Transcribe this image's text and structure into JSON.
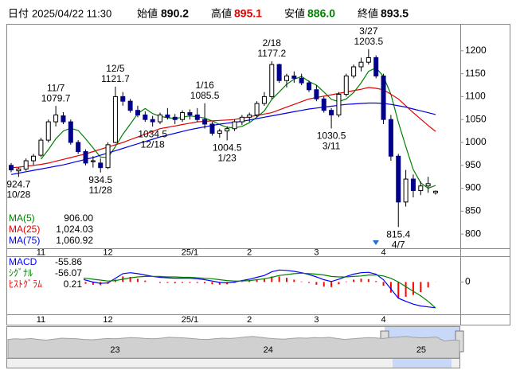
{
  "header": {
    "date_label": "日付",
    "datetime": "2025/04/22 11:30",
    "open_label": "始値",
    "open": 890.2,
    "high_label": "高値",
    "high": 895.1,
    "low_label": "安値",
    "low": {
      "value": 886.0,
      "label": "886.0"
    },
    "close_label": "終値",
    "close": 893.5
  },
  "chart_data": [
    {
      "type": "candlestick",
      "categories": [
        null,
        null,
        null,
        null,
        "11",
        null,
        null,
        null,
        null,
        null,
        null,
        null,
        null,
        "12",
        null,
        null,
        null,
        null,
        null,
        null,
        null,
        null,
        null,
        null,
        "25/1",
        null,
        null,
        null,
        null,
        null,
        null,
        null,
        "2",
        null,
        null,
        null,
        null,
        null,
        null,
        null,
        null,
        "3",
        null,
        null,
        null,
        null,
        null,
        null,
        null,
        null,
        "4",
        null,
        null,
        null,
        null,
        null,
        null,
        null
      ],
      "open": [
        950,
        938,
        942,
        960,
        972,
        1005,
        1045,
        1058,
        1045,
        1000,
        980,
        958,
        955,
        945,
        1000,
        1100,
        1090,
        1070,
        1060,
        1050,
        1045,
        1060,
        1055,
        1050,
        1065,
        1060,
        1050,
        1040,
        1020,
        1025,
        1030,
        1045,
        1055,
        1060,
        1085,
        1100,
        1170,
        1135,
        1145,
        1140,
        1130,
        1115,
        1095,
        1070,
        1060,
        1105,
        1145,
        1165,
        1175,
        1185,
        1145,
        1050,
        970,
        870,
        920,
        895,
        905,
        890.2
      ],
      "high": [
        955,
        945,
        965,
        975,
        1010,
        1050,
        1079.7,
        1066,
        1050,
        1005,
        985,
        970,
        965,
        1000,
        1121.7,
        1110,
        1095,
        1080,
        1068,
        1058,
        1065,
        1075,
        1062,
        1070,
        1072,
        1075,
        1085.5,
        1045,
        1030,
        1035,
        1050,
        1060,
        1065,
        1090,
        1110,
        1177.2,
        1172,
        1150,
        1155,
        1150,
        1135,
        1125,
        1100,
        1075,
        1110,
        1150,
        1170,
        1185,
        1203.5,
        1190,
        1150,
        1060,
        975,
        940,
        930,
        915,
        925,
        895.1
      ],
      "low": [
        935,
        924.7,
        938,
        950,
        968,
        1000,
        1035,
        1040,
        995,
        975,
        950,
        945,
        934.5,
        942,
        998,
        1080,
        1065,
        1055,
        1045,
        1034.5,
        1040,
        1050,
        1040,
        1045,
        1050,
        1045,
        1030,
        1015,
        1010,
        1004.5,
        1025,
        1038,
        1045,
        1055,
        1080,
        1095,
        1130,
        1120,
        1130,
        1125,
        1110,
        1090,
        1065,
        1030.5,
        1055,
        1100,
        1140,
        1155,
        1170,
        1140,
        1040,
        960,
        815.4,
        860,
        880,
        885,
        890,
        886.0
      ],
      "close": [
        940,
        942,
        960,
        970,
        1005,
        1045,
        1060,
        1045,
        1000,
        980,
        955,
        960,
        945,
        995,
        1100,
        1090,
        1070,
        1060,
        1050,
        1045,
        1060,
        1055,
        1050,
        1065,
        1060,
        1050,
        1040,
        1020,
        1025,
        1030,
        1045,
        1055,
        1060,
        1085,
        1100,
        1170,
        1135,
        1145,
        1140,
        1130,
        1115,
        1095,
        1070,
        1060,
        1105,
        1145,
        1165,
        1175,
        1185,
        1145,
        1050,
        970,
        870,
        920,
        895,
        905,
        910,
        893.5
      ],
      "up_color": "#ffffff",
      "down_color": "#00008b",
      "series": [
        {
          "name": "MA(5)",
          "color": "#008000",
          "last": {
            "value": 906.0,
            "label": "906.00"
          },
          "values": [
            null,
            null,
            null,
            null,
            963.4,
            984.4,
            1008,
            1025,
            1031,
            1026,
            1008,
            988,
            968,
            967,
            991,
            1018,
            1040,
            1063,
            1074,
            1063,
            1057,
            1054,
            1052,
            1055,
            1058,
            1056,
            1053,
            1047,
            1039,
            1033,
            1032,
            1035,
            1043,
            1055,
            1069,
            1094,
            1110,
            1127,
            1138,
            1144,
            1133,
            1125,
            1110,
            1094,
            1089,
            1095,
            1109,
            1130,
            1155,
            1163,
            1144,
            1105,
            1044,
            991,
            941,
            912,
            900,
            906
          ]
        },
        {
          "name": "MA(25)",
          "color": "#e00000",
          "last": {
            "value": 1024.03,
            "label": "1,024.03"
          },
          "values": [
            945,
            946,
            948,
            950,
            952,
            955,
            959,
            963,
            967,
            971,
            975,
            980,
            985,
            990,
            995,
            1000,
            1006,
            1012,
            1018,
            1024,
            1030,
            1033,
            1036,
            1039,
            1042,
            1045,
            1046,
            1047,
            1048,
            1049,
            1050,
            1053,
            1056,
            1059,
            1062,
            1065,
            1071,
            1077,
            1083,
            1089,
            1095,
            1098,
            1101,
            1104,
            1107,
            1110,
            1113,
            1116,
            1120,
            1118,
            1115,
            1105,
            1095,
            1080,
            1065,
            1051,
            1037,
            1024.03
          ]
        },
        {
          "name": "MA(75)",
          "color": "#0000e0",
          "last": {
            "value": 1060.92,
            "label": "1,060.92"
          },
          "values": [
            930,
            933,
            936,
            939,
            942,
            945,
            948,
            951,
            955,
            959,
            963,
            967,
            972,
            977,
            982,
            987,
            992,
            997,
            1002,
            1007,
            1012,
            1016,
            1020,
            1024,
            1028,
            1031,
            1034,
            1037,
            1040,
            1042,
            1044,
            1046,
            1049,
            1052,
            1055,
            1058,
            1061,
            1064,
            1067,
            1070,
            1073,
            1075,
            1077,
            1079,
            1081,
            1083,
            1084,
            1085,
            1086,
            1086,
            1085,
            1083,
            1080,
            1077,
            1073,
            1069,
            1065,
            1060.92
          ]
        }
      ],
      "ylim": [
        769,
        1257
      ],
      "yticks": [
        800,
        850,
        900,
        950,
        1000,
        1050,
        1100,
        1150,
        1200
      ],
      "annotations": [
        {
          "value": 924.7,
          "date": "10/28"
        },
        {
          "value": 1079.7,
          "date": "11/7"
        },
        {
          "value": 934.5,
          "date": "11/28"
        },
        {
          "value": 1121.7,
          "date": "12/5"
        },
        {
          "value": 1034.5,
          "date": "12/18"
        },
        {
          "value": 1085.5,
          "date": "1/16"
        },
        {
          "value": 1004.5,
          "date": "1/23"
        },
        {
          "value": 1177.2,
          "date": "2/18"
        },
        {
          "value": 1030.5,
          "date": "3/11"
        },
        {
          "value": 1203.5,
          "date": "3/27"
        },
        {
          "value": 815.4,
          "date": "4/7"
        }
      ]
    },
    {
      "type": "macd",
      "series": [
        {
          "name": "MACD",
          "color": "#0000ff",
          "last": -55.86,
          "values": [
            -8,
            -8,
            -6,
            -3,
            2,
            8,
            13,
            15,
            13,
            9,
            4,
            0,
            -3,
            -2,
            8,
            18,
            20,
            18,
            15,
            12,
            10,
            9,
            8,
            8,
            8,
            7,
            5,
            2,
            -1,
            -2,
            0,
            3,
            6,
            10,
            14,
            22,
            26,
            25,
            23,
            20,
            16,
            11,
            5,
            1,
            6,
            12,
            17,
            20,
            21,
            17,
            5,
            -15,
            -35,
            -42,
            -48,
            -52,
            -54,
            -55.86
          ]
        },
        {
          "name": "ｼｸﾞﾅﾙ",
          "color": "#008000",
          "last": -56.07,
          "values": [
            -6,
            -7,
            -7,
            -6,
            -4,
            -1,
            3,
            6,
            8,
            9,
            8,
            6,
            4,
            2,
            3,
            6,
            9,
            11,
            12,
            12,
            12,
            11,
            11,
            10,
            10,
            9,
            8,
            7,
            5,
            3,
            2,
            2,
            3,
            5,
            7,
            10,
            14,
            16,
            18,
            19,
            18,
            17,
            15,
            12,
            11,
            11,
            12,
            13,
            15,
            15,
            13,
            8,
            0,
            -10,
            -20,
            -30,
            -42,
            -56.07
          ]
        },
        {
          "name": "ﾋｽﾄｸﾞﾗﾑ",
          "color": "#ff0000",
          "last": 0.21,
          "values": [
            -2,
            -1,
            1,
            3,
            6,
            9,
            10,
            9,
            5,
            0,
            -4,
            -6,
            -7,
            -4,
            5,
            12,
            11,
            7,
            3,
            0,
            -2,
            -2,
            -3,
            -2,
            -2,
            -2,
            -3,
            -5,
            -6,
            -5,
            -2,
            1,
            3,
            5,
            7,
            12,
            12,
            9,
            5,
            1,
            -2,
            -6,
            -10,
            -11,
            -5,
            1,
            5,
            7,
            6,
            2,
            -8,
            -23,
            -35,
            -32,
            -28,
            -22,
            -12,
            0.21
          ]
        }
      ],
      "ylim": [
        -70,
        54
      ],
      "yticks": [
        0
      ]
    },
    {
      "type": "area",
      "color": "#a0a0a0",
      "categories": [
        null,
        null,
        null,
        null,
        null,
        null,
        null,
        null,
        null,
        null,
        null,
        null,
        null,
        null,
        "23",
        null,
        null,
        null,
        null,
        null,
        null,
        null,
        null,
        null,
        null,
        null,
        null,
        null,
        null,
        null,
        null,
        null,
        null,
        null,
        "24",
        null,
        null,
        null,
        null,
        null,
        null,
        null,
        null,
        null,
        null,
        null,
        null,
        null,
        null,
        null,
        null,
        null,
        null,
        null,
        "25",
        null,
        null,
        null,
        null,
        null
      ],
      "values": [
        60,
        62,
        61,
        63,
        60,
        58,
        61,
        64,
        63,
        62,
        60,
        59,
        61,
        63,
        62,
        64,
        66,
        65,
        63,
        62,
        64,
        67,
        66,
        65,
        63,
        61,
        60,
        62,
        64,
        63,
        65,
        68,
        70,
        67,
        64,
        62,
        61,
        63,
        65,
        64,
        66,
        65,
        67,
        63,
        60,
        62,
        64,
        66,
        65,
        63,
        66,
        68,
        70,
        67,
        65,
        66,
        68,
        55,
        58,
        57
      ],
      "ylim": [
        0,
        100
      ]
    }
  ]
}
